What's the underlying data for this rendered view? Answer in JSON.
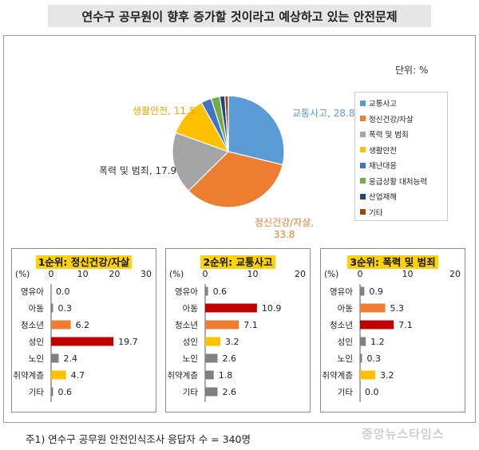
{
  "header": {
    "title": "연수구 공무원이 향후 증가할 것이라고 예상하고 있는 안전문제"
  },
  "unit_label": "단위: %",
  "footnote": "주1) 연수구 공무원 안전인식조사 응답자 수 = 340명",
  "watermark": "중앙뉴스타임스",
  "chart_data": [
    {
      "type": "pie",
      "unit": "단위: %",
      "categories": [
        "교통사고",
        "정신건강/자살",
        "폭력 및 범죄",
        "생활안전",
        "재난대응",
        "응급상황 대처능력",
        "산업재해",
        "기타"
      ],
      "values": [
        28.8,
        33.8,
        17.9,
        11.5,
        3.0,
        2.5,
        1.5,
        1.0
      ],
      "colors": [
        "#5b9bd5",
        "#ed7d31",
        "#a5a5a5",
        "#ffc000",
        "#4472c4",
        "#70ad47",
        "#264478",
        "#9e480e"
      ],
      "slice_labels": [
        {
          "text": "교통사고, 28.8",
          "color": "#5b9bd5"
        },
        {
          "text": "정신건강/자살,",
          "text2": "33.8",
          "color": "#ed7d31"
        },
        {
          "text": "폭력 및 범죄, 17.9",
          "color": "#333333"
        },
        {
          "text": "생활안전, 11.5",
          "color": "#e8a600"
        }
      ],
      "legend_placement": "right"
    },
    {
      "type": "bar",
      "title": "1순위: 정신건강/자살",
      "axis_unit": "(%)",
      "categories": [
        "영유아",
        "아동",
        "청소년",
        "성인",
        "노인",
        "취약계층",
        "기타"
      ],
      "values": [
        0.0,
        0.3,
        6.2,
        19.7,
        2.4,
        4.7,
        0.6
      ],
      "value_labels": [
        "0.0",
        "0.3",
        "6.2",
        "19.7",
        "2.4",
        "4.7",
        "0.6"
      ],
      "bar_colors": [
        "#808080",
        "#808080",
        "#ed7d31",
        "#c00000",
        "#808080",
        "#ffc000",
        "#808080"
      ],
      "xlim": [
        0,
        30
      ],
      "ticks": [
        "0",
        "10",
        "20",
        "30"
      ]
    },
    {
      "type": "bar",
      "title": "2순위: 교통사고",
      "axis_unit": "(%)",
      "categories": [
        "영유아",
        "아동",
        "청소년",
        "성인",
        "노인",
        "취약계층",
        "기타"
      ],
      "values": [
        0.6,
        10.9,
        7.1,
        3.2,
        2.6,
        1.8,
        2.6
      ],
      "value_labels": [
        "0.6",
        "10.9",
        "7.1",
        "3.2",
        "2.6",
        "1.8",
        "2.6"
      ],
      "bar_colors": [
        "#808080",
        "#c00000",
        "#ed7d31",
        "#ffc000",
        "#808080",
        "#808080",
        "#808080"
      ],
      "xlim": [
        0,
        20
      ],
      "ticks": [
        "0",
        "10",
        "20"
      ]
    },
    {
      "type": "bar",
      "title": "3순위: 폭력 및 범죄",
      "axis_unit": "(%)",
      "categories": [
        "영유아",
        "아동",
        "청소년",
        "성인",
        "노인",
        "취약계층",
        "기타"
      ],
      "values": [
        0.9,
        5.3,
        7.1,
        1.2,
        0.3,
        3.2,
        0.0
      ],
      "value_labels": [
        "0.9",
        "5.3",
        "7.1",
        "1.2",
        "0.3",
        "3.2",
        "0.0"
      ],
      "bar_colors": [
        "#808080",
        "#ed7d31",
        "#c00000",
        "#808080",
        "#808080",
        "#ffc000",
        "#808080"
      ],
      "xlim": [
        0,
        20
      ],
      "ticks": [
        "0",
        "10",
        "20"
      ]
    }
  ]
}
